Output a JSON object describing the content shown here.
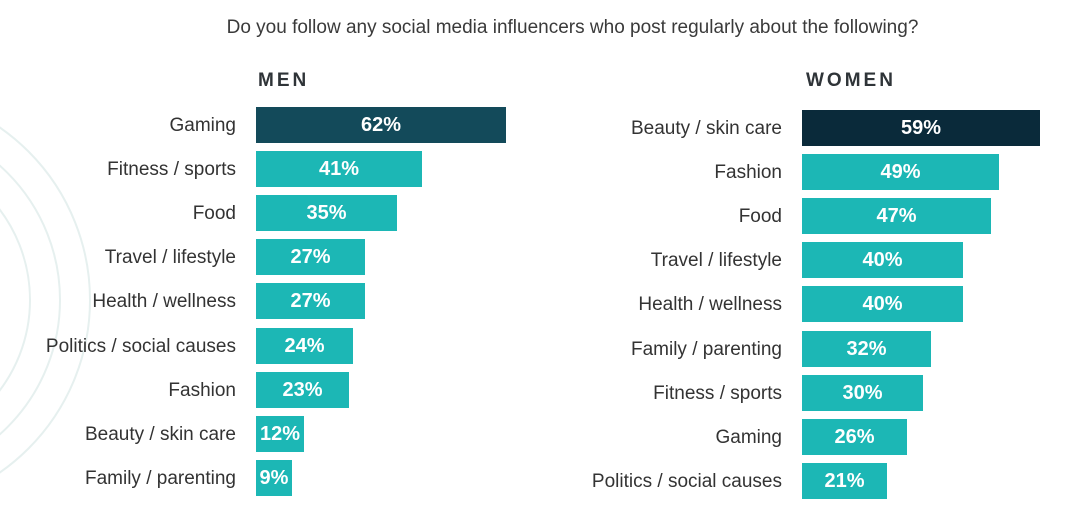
{
  "colors": {
    "bar": "#1cb7b5",
    "highlight_men": "#134a5a",
    "highlight_women": "#0a2a3a",
    "decor": "#e6f0ef"
  },
  "chart_data": [
    {
      "type": "bar",
      "orientation": "horizontal",
      "title": "Do you follow any social media influencers who post regularly about the following?",
      "panel": "MEN",
      "categories": [
        "Gaming",
        "Fitness / sports",
        "Food",
        "Travel / lifestyle",
        "Health / wellness",
        "Politics / social causes",
        "Fashion",
        "Beauty / skin care",
        "Family / parenting"
      ],
      "values": [
        62,
        41,
        35,
        27,
        27,
        24,
        23,
        12,
        9
      ],
      "labels": [
        "62%",
        "41%",
        "35%",
        "27%",
        "27%",
        "24%",
        "23%",
        "12%",
        "9%"
      ],
      "unit": "%",
      "xlim": [
        0,
        100
      ],
      "highlight_index": 0
    },
    {
      "type": "bar",
      "orientation": "horizontal",
      "panel": "WOMEN",
      "categories": [
        "Beauty / skin care",
        "Fashion",
        "Food",
        "Travel / lifestyle",
        "Health / wellness",
        "Family / parenting",
        "Fitness / sports",
        "Gaming",
        "Politics / social causes"
      ],
      "values": [
        59,
        49,
        47,
        40,
        40,
        32,
        30,
        26,
        21
      ],
      "labels": [
        "59%",
        "49%",
        "47%",
        "40%",
        "40%",
        "32%",
        "30%",
        "26%",
        "21%"
      ],
      "unit": "%",
      "xlim": [
        0,
        100
      ],
      "highlight_index": 0
    }
  ]
}
